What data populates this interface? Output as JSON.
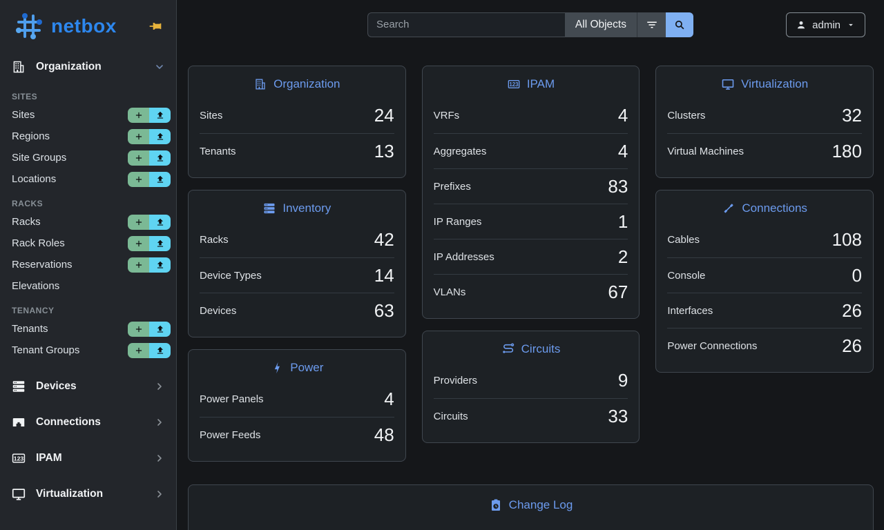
{
  "app": {
    "logo_text": "netbox"
  },
  "topbar": {
    "search_placeholder": "Search",
    "scope_button": "All Objects",
    "user_menu": "admin"
  },
  "sidebar": {
    "expanded_group": {
      "label": "Organization",
      "icon": "building-icon"
    },
    "sections": [
      {
        "title": "SITES",
        "items": [
          {
            "label": "Sites",
            "has_actions": true
          },
          {
            "label": "Regions",
            "has_actions": true
          },
          {
            "label": "Site Groups",
            "has_actions": true
          },
          {
            "label": "Locations",
            "has_actions": true
          }
        ]
      },
      {
        "title": "RACKS",
        "items": [
          {
            "label": "Racks",
            "has_actions": true
          },
          {
            "label": "Rack Roles",
            "has_actions": true
          },
          {
            "label": "Reservations",
            "has_actions": true
          },
          {
            "label": "Elevations",
            "has_actions": false
          }
        ]
      },
      {
        "title": "TENANCY",
        "items": [
          {
            "label": "Tenants",
            "has_actions": true
          },
          {
            "label": "Tenant Groups",
            "has_actions": true
          }
        ]
      }
    ],
    "collapsed_groups": [
      {
        "label": "Devices",
        "icon": "server-icon"
      },
      {
        "label": "Connections",
        "icon": "ethernet-port-icon"
      },
      {
        "label": "IPAM",
        "icon": "counter-icon"
      },
      {
        "label": "Virtualization",
        "icon": "monitor-icon"
      }
    ]
  },
  "dashboard": {
    "columns": [
      [
        {
          "id": "organization",
          "title": "Organization",
          "icon": "building-icon",
          "rows": [
            {
              "label": "Sites",
              "value": "24"
            },
            {
              "label": "Tenants",
              "value": "13"
            }
          ]
        },
        {
          "id": "inventory",
          "title": "Inventory",
          "icon": "rack-icon",
          "rows": [
            {
              "label": "Racks",
              "value": "42"
            },
            {
              "label": "Device Types",
              "value": "14"
            },
            {
              "label": "Devices",
              "value": "63"
            }
          ]
        },
        {
          "id": "power",
          "title": "Power",
          "icon": "lightning-icon",
          "rows": [
            {
              "label": "Power Panels",
              "value": "4"
            },
            {
              "label": "Power Feeds",
              "value": "48"
            }
          ]
        }
      ],
      [
        {
          "id": "ipam",
          "title": "IPAM",
          "icon": "counter-icon",
          "rows": [
            {
              "label": "VRFs",
              "value": "4"
            },
            {
              "label": "Aggregates",
              "value": "4"
            },
            {
              "label": "Prefixes",
              "value": "83"
            },
            {
              "label": "IP Ranges",
              "value": "1"
            },
            {
              "label": "IP Addresses",
              "value": "2"
            },
            {
              "label": "VLANs",
              "value": "67"
            }
          ]
        },
        {
          "id": "circuits",
          "title": "Circuits",
          "icon": "transit-icon",
          "rows": [
            {
              "label": "Providers",
              "value": "9"
            },
            {
              "label": "Circuits",
              "value": "33"
            }
          ]
        }
      ],
      [
        {
          "id": "virtualization",
          "title": "Virtualization",
          "icon": "monitor-icon",
          "rows": [
            {
              "label": "Clusters",
              "value": "32"
            },
            {
              "label": "Virtual Machines",
              "value": "180"
            }
          ]
        },
        {
          "id": "connections",
          "title": "Connections",
          "icon": "cable-icon",
          "rows": [
            {
              "label": "Cables",
              "value": "108"
            },
            {
              "label": "Console",
              "value": "0"
            },
            {
              "label": "Interfaces",
              "value": "26"
            },
            {
              "label": "Power Connections",
              "value": "26"
            }
          ]
        }
      ]
    ],
    "changelog": {
      "title": "Change Log",
      "icon": "clipboard-clock-icon"
    }
  },
  "colors": {
    "accent_blue": "#6c9bee",
    "logo_blue": "#2d87ee",
    "add_button_green": "#7bb995",
    "import_button_cyan": "#5fd4f2",
    "search_button_blue": "#7fb0f2",
    "pin_yellow": "#e7b33c",
    "card_background": "#1d2125",
    "sidebar_background": "#23262b",
    "page_background": "#15171a"
  }
}
